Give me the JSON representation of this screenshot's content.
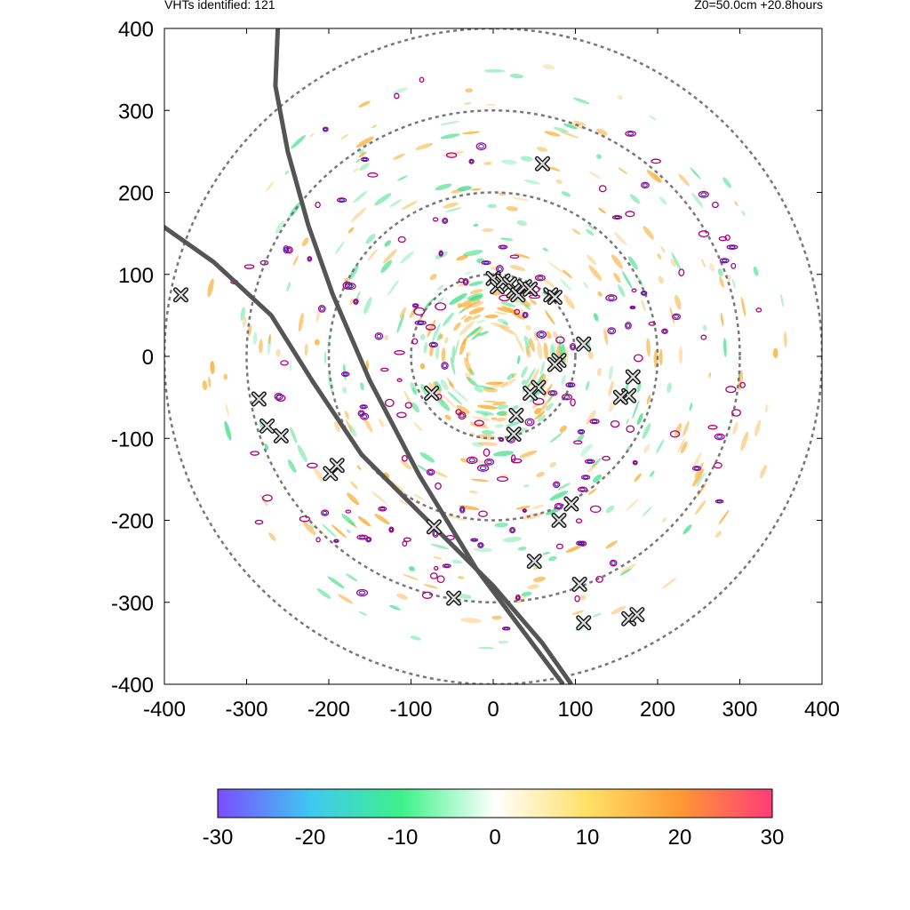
{
  "header": {
    "left": "VHTs identified: 121",
    "right": "Z0=50.0cm  +20.8hours"
  },
  "chart_data": {
    "type": "scatter",
    "xlim": [
      -400,
      400
    ],
    "ylim": [
      -400,
      400
    ],
    "x_ticks": [
      -400,
      -300,
      -200,
      -100,
      0,
      100,
      200,
      300,
      400
    ],
    "y_ticks": [
      -400,
      -300,
      -200,
      -100,
      0,
      100,
      200,
      300,
      400
    ],
    "range_rings": [
      100,
      200,
      300,
      400
    ],
    "vht_markers": [
      [
        -380,
        75
      ],
      [
        -285,
        -52
      ],
      [
        -275,
        -85
      ],
      [
        -258,
        -97
      ],
      [
        -198,
        -143
      ],
      [
        -190,
        -133
      ],
      [
        -75,
        -45
      ],
      [
        -72,
        -208
      ],
      [
        -48,
        -295
      ],
      [
        0,
        95
      ],
      [
        5,
        85
      ],
      [
        12,
        92
      ],
      [
        20,
        88
      ],
      [
        25,
        80
      ],
      [
        30,
        75
      ],
      [
        38,
        85
      ],
      [
        45,
        82
      ],
      [
        70,
        75
      ],
      [
        75,
        72
      ],
      [
        60,
        235
      ],
      [
        80,
        -5
      ],
      [
        75,
        -10
      ],
      [
        110,
        15
      ],
      [
        55,
        -38
      ],
      [
        45,
        -45
      ],
      [
        28,
        -72
      ],
      [
        25,
        -95
      ],
      [
        165,
        -48
      ],
      [
        170,
        -25
      ],
      [
        155,
        -50
      ],
      [
        95,
        -180
      ],
      [
        80,
        -200
      ],
      [
        50,
        -250
      ],
      [
        105,
        -278
      ],
      [
        110,
        -325
      ],
      [
        165,
        -320
      ],
      [
        175,
        -315
      ]
    ],
    "tracks": [
      {
        "points": [
          [
            -415,
            168
          ],
          [
            -340,
            115
          ],
          [
            -270,
            50
          ],
          [
            -220,
            -30
          ],
          [
            -160,
            -120
          ],
          [
            -80,
            -200
          ],
          [
            0,
            -280
          ],
          [
            60,
            -350
          ],
          [
            95,
            -400
          ]
        ]
      },
      {
        "points": [
          [
            -262,
            400
          ],
          [
            -265,
            330
          ],
          [
            -250,
            250
          ],
          [
            -225,
            160
          ],
          [
            -195,
            75
          ],
          [
            -150,
            -30
          ],
          [
            -90,
            -145
          ],
          [
            -20,
            -260
          ],
          [
            40,
            -340
          ],
          [
            85,
            -400
          ]
        ]
      }
    ],
    "colorbar": {
      "min": -30,
      "max": 30,
      "ticks": [
        -30,
        -20,
        -10,
        0,
        10,
        20,
        30
      ],
      "colors": [
        "#7b4dff",
        "#3ec8f2",
        "#3ef28a",
        "#ffffff",
        "#ffe066",
        "#ff9933",
        "#ff3b78"
      ]
    },
    "colors": {
      "ring": "#777777",
      "track": "#555555",
      "contour_outer": "#b0007a",
      "contour_inner": "#2020c0",
      "positive_field": "#f5a623",
      "negative_field": "#3ddc84"
    }
  }
}
